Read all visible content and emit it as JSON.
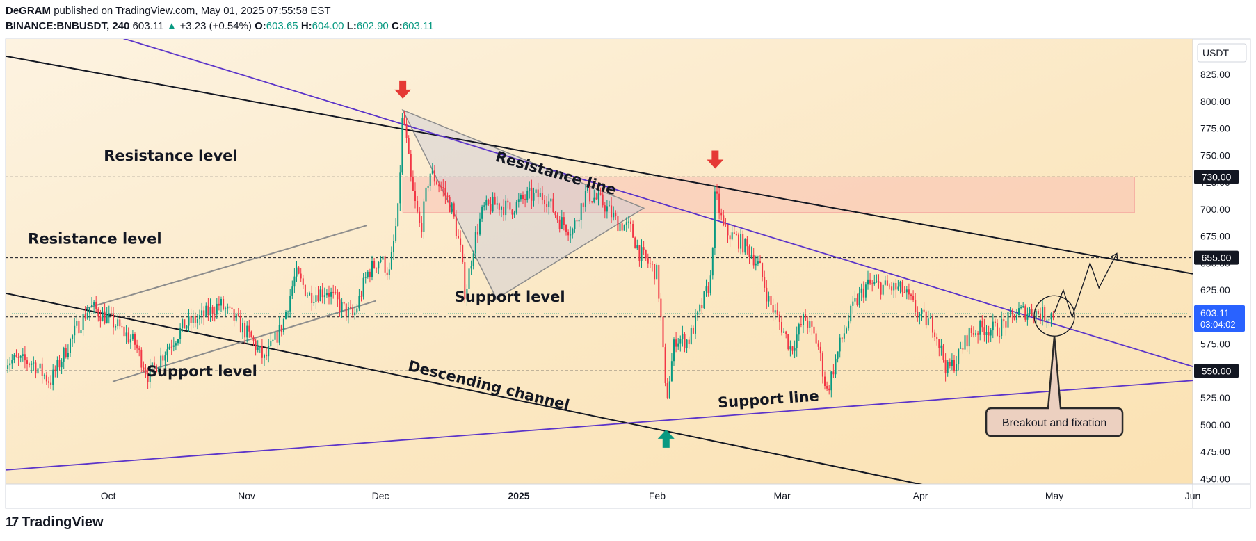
{
  "header": {
    "publisher": "DeGRAM",
    "published_text": "published on TradingView.com, May 01, 2025 07:55:58 EST",
    "symbol": "BINANCE:BNBUSDT, 240",
    "last": "603.11",
    "change": "+3.23 (+0.54%)",
    "o_label": "O:",
    "o_value": "603.65",
    "h_label": "H:",
    "h_value": "604.00",
    "l_label": "L:",
    "l_value": "602.90",
    "c_label": "C:",
    "c_value": "603.11",
    "change_arrow": "▲"
  },
  "footer": {
    "brand": "TradingView",
    "logo_mark": "17"
  },
  "chart_data": {
    "type": "candlestick",
    "currency": "USDT",
    "x_ticks": [
      "Oct",
      "Nov",
      "Dec",
      "2025",
      "Feb",
      "Mar",
      "Apr",
      "May",
      "Jun"
    ],
    "x_tick_dates": [
      "2024-10-01",
      "2024-11-01",
      "2024-12-01",
      "2025-01-01",
      "2025-02-01",
      "2025-03-01",
      "2025-04-01",
      "2025-05-01",
      "2025-06-01"
    ],
    "y_ticks": [
      450,
      475,
      500,
      525,
      550,
      575,
      600,
      625,
      650,
      675,
      700,
      725,
      750,
      775,
      800,
      825
    ],
    "y_tick_labels": [
      "450.00",
      "475.00",
      "500.00",
      "525.00",
      "550.00",
      "575.00",
      "600.00",
      "625.00",
      "650.00",
      "675.00",
      "700.00",
      "725.00",
      "750.00",
      "775.00",
      "800.00",
      "825.00"
    ],
    "ylim": [
      445,
      858
    ],
    "xlim": [
      "2024-09-08",
      "2025-06-01"
    ],
    "last_price": {
      "value": "603.11",
      "countdown": "03:04:02"
    },
    "price_levels": [
      {
        "value": 730,
        "label": "730.00"
      },
      {
        "value": 655,
        "label": "655.00"
      },
      {
        "value": 600,
        "label": "600.00"
      },
      {
        "value": 550,
        "label": "550.00"
      }
    ],
    "price_path": [
      [
        "2024-09-08",
        560
      ],
      [
        "2024-09-14",
        558
      ],
      [
        "2024-09-18",
        540
      ],
      [
        "2024-09-24",
        590
      ],
      [
        "2024-09-27",
        610
      ],
      [
        "2024-10-03",
        592
      ],
      [
        "2024-10-07",
        575
      ],
      [
        "2024-10-10",
        545
      ],
      [
        "2024-10-14",
        570
      ],
      [
        "2024-10-18",
        592
      ],
      [
        "2024-10-22",
        600
      ],
      [
        "2024-10-26",
        612
      ],
      [
        "2024-10-30",
        595
      ],
      [
        "2024-11-02",
        580
      ],
      [
        "2024-11-05",
        560
      ],
      [
        "2024-11-09",
        592
      ],
      [
        "2024-11-12",
        640
      ],
      [
        "2024-11-15",
        620
      ],
      [
        "2024-11-19",
        625
      ],
      [
        "2024-11-22",
        610
      ],
      [
        "2024-11-25",
        600
      ],
      [
        "2024-11-28",
        640
      ],
      [
        "2024-12-01",
        655
      ],
      [
        "2024-12-03",
        640
      ],
      [
        "2024-12-05",
        700
      ],
      [
        "2024-12-06",
        792
      ],
      [
        "2024-12-08",
        720
      ],
      [
        "2024-12-10",
        680
      ],
      [
        "2024-12-12",
        735
      ],
      [
        "2024-12-15",
        718
      ],
      [
        "2024-12-17",
        700
      ],
      [
        "2024-12-19",
        660
      ],
      [
        "2024-12-20",
        620
      ],
      [
        "2024-12-22",
        670
      ],
      [
        "2024-12-24",
        700
      ],
      [
        "2024-12-27",
        705
      ],
      [
        "2024-12-30",
        700
      ],
      [
        "2025-01-03",
        712
      ],
      [
        "2025-01-07",
        712
      ],
      [
        "2025-01-10",
        690
      ],
      [
        "2025-01-13",
        680
      ],
      [
        "2025-01-16",
        715
      ],
      [
        "2025-01-20",
        705
      ],
      [
        "2025-01-23",
        688
      ],
      [
        "2025-01-26",
        682
      ],
      [
        "2025-01-28",
        660
      ],
      [
        "2025-02-01",
        640
      ],
      [
        "2025-02-02",
        590
      ],
      [
        "2025-02-03",
        520
      ],
      [
        "2025-02-05",
        580
      ],
      [
        "2025-02-08",
        578
      ],
      [
        "2025-02-11",
        610
      ],
      [
        "2025-02-13",
        635
      ],
      [
        "2025-02-14",
        715
      ],
      [
        "2025-02-16",
        680
      ],
      [
        "2025-02-19",
        672
      ],
      [
        "2025-02-22",
        660
      ],
      [
        "2025-02-24",
        645
      ],
      [
        "2025-02-26",
        615
      ],
      [
        "2025-03-01",
        590
      ],
      [
        "2025-03-03",
        570
      ],
      [
        "2025-03-06",
        600
      ],
      [
        "2025-03-09",
        575
      ],
      [
        "2025-03-11",
        530
      ],
      [
        "2025-03-14",
        575
      ],
      [
        "2025-03-17",
        610
      ],
      [
        "2025-03-20",
        630
      ],
      [
        "2025-03-24",
        628
      ],
      [
        "2025-03-28",
        625
      ],
      [
        "2025-04-01",
        600
      ],
      [
        "2025-04-04",
        592
      ],
      [
        "2025-04-07",
        550
      ],
      [
        "2025-04-09",
        560
      ],
      [
        "2025-04-12",
        585
      ],
      [
        "2025-04-15",
        590
      ],
      [
        "2025-04-18",
        588
      ],
      [
        "2025-04-21",
        598
      ],
      [
        "2025-04-23",
        605
      ],
      [
        "2025-04-26",
        605
      ],
      [
        "2025-04-29",
        602
      ],
      [
        "2025-05-01",
        603
      ]
    ],
    "forecast_path": [
      [
        "2025-05-01",
        604
      ],
      [
        "2025-05-03",
        625
      ],
      [
        "2025-05-05",
        600
      ],
      [
        "2025-05-09",
        650
      ],
      [
        "2025-05-11",
        627
      ],
      [
        "2025-05-15",
        659
      ]
    ],
    "lines": [
      {
        "name": "channel-upper",
        "from": [
          "2024-09-08",
          842
        ],
        "to": [
          "2025-06-01",
          640
        ]
      },
      {
        "name": "channel-lower",
        "from": [
          "2024-09-08",
          622
        ],
        "to": [
          "2025-06-01",
          392
        ]
      },
      {
        "name": "resistance-line",
        "from": [
          "2024-09-08",
          892
        ],
        "to": [
          "2025-06-01",
          554
        ]
      },
      {
        "name": "support-line",
        "from": [
          "2024-09-08",
          458
        ],
        "to": [
          "2025-06-01",
          541
        ]
      },
      {
        "name": "rising-channel-upper",
        "from": [
          "2024-09-26",
          608
        ],
        "to": [
          "2024-11-28",
          685
        ]
      },
      {
        "name": "rising-channel-lower",
        "from": [
          "2024-10-02",
          540
        ],
        "to": [
          "2024-11-30",
          615
        ]
      }
    ],
    "triangle": [
      [
        "2024-12-06",
        792
      ],
      [
        "2024-12-27",
        617
      ],
      [
        "2025-01-29",
        701
      ]
    ],
    "resistance_zone": {
      "from": "2024-12-06",
      "to": "2025-05-19",
      "low": 697,
      "high": 730
    },
    "annotations": [
      {
        "text": "Resistance level",
        "date": "2024-10-15",
        "price": 745,
        "rotate": 0
      },
      {
        "text": "Resistance level",
        "date": "2024-09-28",
        "price": 668,
        "rotate": 0
      },
      {
        "text": "Support level",
        "date": "2024-10-22",
        "price": 545,
        "rotate": 0
      },
      {
        "text": "Support level",
        "date": "2024-12-30",
        "price": 614,
        "rotate": 0
      },
      {
        "text": "Resistance line",
        "date": "2025-01-09",
        "price": 729,
        "rotate": 16
      },
      {
        "text": "Descending channel",
        "date": "2024-12-25",
        "price": 532,
        "rotate": 14
      },
      {
        "text": "Support line",
        "date": "2025-02-26",
        "price": 519,
        "rotate": -4
      }
    ],
    "arrows": [
      {
        "direction": "down",
        "date": "2024-12-06",
        "price": 811,
        "color": "#e53935"
      },
      {
        "direction": "down",
        "date": "2025-02-14",
        "price": 746,
        "color": "#e53935"
      },
      {
        "direction": "up",
        "date": "2025-02-03",
        "price": 487,
        "color": "#089981"
      }
    ],
    "callout": {
      "text": "Breakout and fixation",
      "date": "2025-05-01",
      "price": 601
    }
  }
}
